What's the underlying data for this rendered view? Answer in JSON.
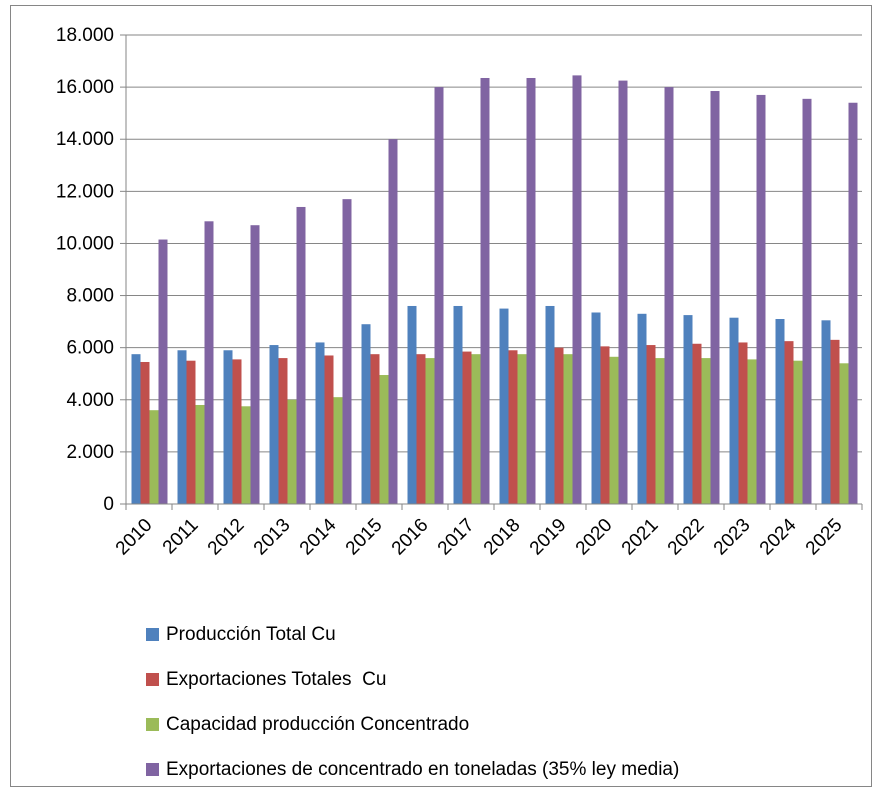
{
  "chart_data": {
    "type": "bar",
    "title": "",
    "xlabel": "",
    "ylabel": "",
    "ylim": [
      0,
      18000
    ],
    "yticks": [
      0,
      2000,
      4000,
      6000,
      8000,
      10000,
      12000,
      14000,
      16000,
      18000
    ],
    "ytick_labels": [
      "0",
      "2.000",
      "4.000",
      "6.000",
      "8.000",
      "10.000",
      "12.000",
      "14.000",
      "16.000",
      "18.000"
    ],
    "grid": true,
    "legend_position": "bottom",
    "categories": [
      "2010",
      "2011",
      "2012",
      "2013",
      "2014",
      "2015",
      "2016",
      "2017",
      "2018",
      "2019",
      "2020",
      "2021",
      "2022",
      "2023",
      "2024",
      "2025"
    ],
    "series": [
      {
        "name": "Producción Total Cu",
        "color": "#4F81BD",
        "values": [
          5750,
          5900,
          5900,
          6100,
          6200,
          6900,
          7600,
          7600,
          7500,
          7600,
          7350,
          7300,
          7250,
          7150,
          7100,
          7050
        ]
      },
      {
        "name": "Exportaciones Totales  Cu",
        "color": "#C0504D",
        "values": [
          5450,
          5500,
          5550,
          5600,
          5700,
          5750,
          5750,
          5850,
          5900,
          6000,
          6050,
          6100,
          6150,
          6200,
          6250,
          6300
        ]
      },
      {
        "name": "Capacidad producción Concentrado",
        "color": "#9BBB59",
        "values": [
          3600,
          3800,
          3750,
          4000,
          4100,
          4950,
          5600,
          5750,
          5750,
          5750,
          5650,
          5600,
          5600,
          5550,
          5500,
          5400
        ]
      },
      {
        "name": "Exportaciones de concentrado en toneladas (35% ley media)",
        "color": "#8064A2",
        "values": [
          10150,
          10850,
          10700,
          11400,
          11700,
          14000,
          16000,
          16350,
          16350,
          16450,
          16250,
          16000,
          15850,
          15700,
          15550,
          15400
        ]
      }
    ]
  }
}
